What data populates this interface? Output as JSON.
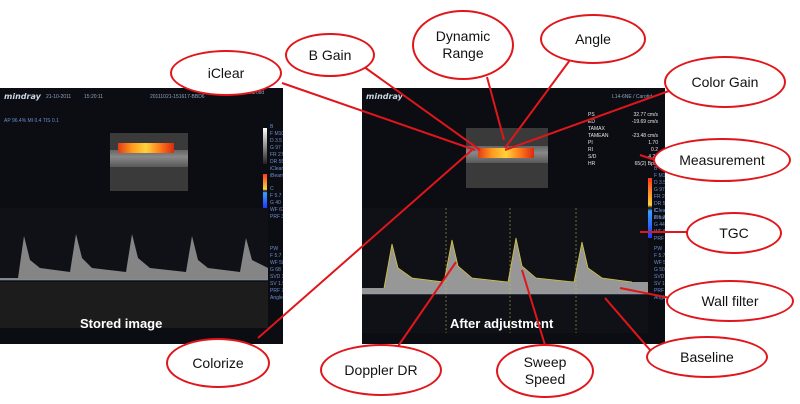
{
  "callouts": {
    "iclear": "iClear",
    "b_gain": "B Gain",
    "dynamic_range": "Dynamic\nRange",
    "angle": "Angle",
    "color_gain": "Color Gain",
    "measurement": "Measurement",
    "tgc": "TGC",
    "wall_filter": "Wall filter",
    "baseline": "Baseline",
    "sweep_speed": "Sweep\nSpeed",
    "doppler_dr": "Doppler DR",
    "colorize": "Colorize"
  },
  "left_screen": {
    "brand": "mindray",
    "date": "21-10-2011",
    "time": "15:20:11",
    "study_id": "20111021-151617-BBD6",
    "probe": "L14-6NE / Carotid",
    "ap_line": "AP 96.4%  MI 0.4  TIS 0.1",
    "mode_b": "B\nF M10\nD 3.5\nG 97\nFR 27\nDR 55\niClear 4\niBeam 1",
    "mode_c": "C\nF 5.7\nG 40\nWF 635\nPRF 3.9k",
    "mode_pw": "PW\nF 5.7\nWF 582\nG 68\nSVD 11.1\nSV 1.5\nPRF 7.1k\nAngle 0°",
    "overlay": "Stored image"
  },
  "right_screen": {
    "brand": "mindray",
    "probe": "L14-6NE / Carotid",
    "measurements": [
      [
        "PS",
        "32.77 cm/s"
      ],
      [
        "ED",
        "-19.69 cm/s"
      ],
      [
        "TAMAX",
        ""
      ],
      [
        "TAMEAN",
        "-23.48 cm/s"
      ],
      [
        "PI",
        "1.70"
      ],
      [
        "RI",
        "0.2"
      ],
      [
        "S/D",
        "4.20"
      ],
      [
        "HR",
        "65(2) Bpm"
      ]
    ],
    "mode_b": "B\nF M10\nD 3.5\nG 97\nFR 27\nDR 55\niClear 4\niBeam 1",
    "mode_c": "C\nF 5.7\nG 44\nWF 635\nPRF 3.9k",
    "mode_pw": "PW\nF 5.7\nWF 582\nG 50\nSVD 11.1\nSV 1.5\nPRF 7.1k\nAngle 60°",
    "overlay": "After adjustment"
  },
  "colors": {
    "callout_border": "#e0161b",
    "leader_line": "#e0161b",
    "screen_bg": "#0b0d12"
  }
}
